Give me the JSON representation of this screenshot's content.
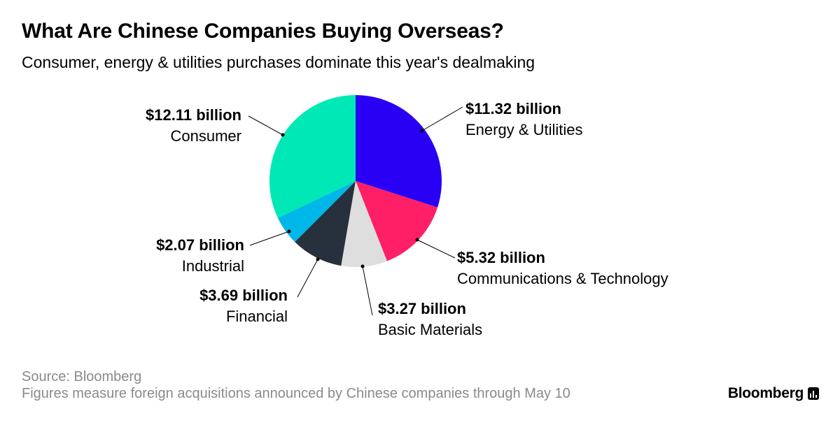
{
  "title": "What Are Chinese Companies Buying Overseas?",
  "subtitle": "Consumer, energy & utilities purchases dominate this year's dealmaking",
  "source": "Source: Bloomberg",
  "note": "Figures measure foreign acquisitions announced by Chinese companies through May 10",
  "brand": "Bloomberg",
  "brand_icon": "bloomberg-terminal-icon",
  "chart_data": {
    "type": "pie",
    "unit": "billion USD",
    "slices": [
      {
        "category": "Energy & Utilities",
        "value": 11.32,
        "value_label": "$11.32 billion",
        "color": "#2a00f5"
      },
      {
        "category": "Communications & Technology",
        "value": 5.32,
        "value_label": "$5.32 billion",
        "color": "#ff1f66"
      },
      {
        "category": "Basic Materials",
        "value": 3.27,
        "value_label": "$3.27 billion",
        "color": "#dedede"
      },
      {
        "category": "Financial",
        "value": 3.69,
        "value_label": "$3.69 billion",
        "color": "#27313d"
      },
      {
        "category": "Industrial",
        "value": 2.07,
        "value_label": "$2.07 billion",
        "color": "#00b7ea"
      },
      {
        "category": "Consumer",
        "value": 12.11,
        "value_label": "$12.11 billion",
        "color": "#00e8b5"
      }
    ]
  }
}
